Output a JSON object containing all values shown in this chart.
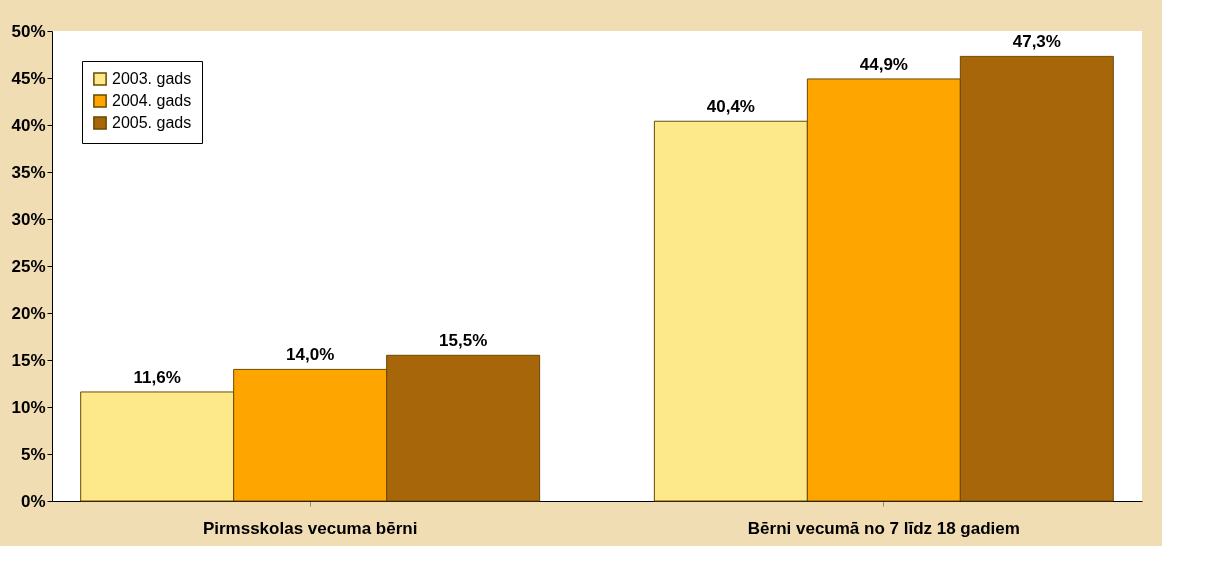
{
  "chart_data": {
    "type": "bar",
    "categories": [
      "Pirmsskolas vecuma bērni",
      "Bērni vecumā no 7 līdz 18 gadiem"
    ],
    "series": [
      {
        "name": "2003. gads",
        "color": "#fde98a",
        "values": [
          11.6,
          40.4
        ],
        "value_labels": [
          "11,6%",
          "40,4%"
        ]
      },
      {
        "name": "2004. gads",
        "color": "#ffa500",
        "values": [
          14.0,
          44.9
        ],
        "value_labels": [
          "14,0%",
          "44,9%"
        ]
      },
      {
        "name": "2005. gads",
        "color": "#a8660a",
        "values": [
          15.5,
          47.3
        ],
        "value_labels": [
          "15,5%",
          "47,3%"
        ]
      }
    ],
    "ylim": [
      0,
      50
    ],
    "yticks": [
      {
        "value": 0,
        "label": "0%"
      },
      {
        "value": 5,
        "label": "5%"
      },
      {
        "value": 10,
        "label": "10%"
      },
      {
        "value": 15,
        "label": "15%"
      },
      {
        "value": 20,
        "label": "20%"
      },
      {
        "value": 25,
        "label": "25%"
      },
      {
        "value": 30,
        "label": "30%"
      },
      {
        "value": 35,
        "label": "35%"
      },
      {
        "value": 40,
        "label": "40%"
      },
      {
        "value": 45,
        "label": "45%"
      },
      {
        "value": 50,
        "label": "50%"
      }
    ],
    "legend": "top left",
    "grid": false
  }
}
